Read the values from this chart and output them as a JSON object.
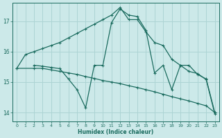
{
  "xlabel": "Humidex (Indice chaleur)",
  "background_color": "#cce9e9",
  "grid_color": "#add4d4",
  "line_color": "#1a6b5e",
  "xlim": [
    -0.5,
    23.5
  ],
  "ylim": [
    13.7,
    17.6
  ],
  "yticks": [
    14,
    15,
    16,
    17
  ],
  "xticks": [
    0,
    1,
    2,
    3,
    4,
    5,
    6,
    7,
    8,
    9,
    10,
    11,
    12,
    13,
    14,
    15,
    16,
    17,
    18,
    19,
    20,
    21,
    22,
    23
  ],
  "line1_x": [
    0,
    1,
    2,
    3,
    4,
    5,
    6,
    7,
    8,
    9,
    10,
    11,
    12,
    13,
    14,
    15,
    16,
    17,
    18,
    19,
    20,
    21,
    22,
    23
  ],
  "line1_y": [
    15.45,
    15.9,
    16.0,
    16.1,
    16.2,
    16.3,
    16.45,
    16.6,
    16.75,
    16.9,
    17.05,
    17.2,
    17.45,
    17.05,
    17.05,
    16.65,
    16.3,
    16.2,
    15.75,
    15.55,
    15.55,
    15.25,
    15.1,
    14.0
  ],
  "line2_x": [
    0,
    2,
    3,
    4,
    5,
    6,
    7,
    8,
    9,
    10,
    11,
    12,
    13,
    14,
    15,
    16,
    17,
    18,
    19,
    20,
    21,
    22,
    23
  ],
  "line2_y": [
    15.45,
    15.45,
    15.45,
    15.4,
    15.35,
    15.3,
    15.25,
    15.18,
    15.12,
    15.05,
    15.0,
    14.95,
    14.88,
    14.82,
    14.75,
    14.68,
    14.6,
    14.52,
    14.45,
    14.38,
    14.3,
    14.22,
    14.0
  ],
  "line3_x": [
    2,
    3,
    4,
    5,
    6,
    7,
    8,
    9,
    10,
    11,
    12,
    13,
    14,
    15,
    16,
    17,
    18,
    19,
    20,
    21,
    22,
    23
  ],
  "line3_y": [
    15.55,
    15.52,
    15.48,
    15.44,
    15.1,
    14.75,
    14.15,
    15.55,
    15.55,
    16.95,
    17.4,
    17.2,
    17.15,
    16.7,
    15.3,
    15.55,
    14.75,
    15.55,
    15.35,
    15.28,
    15.08,
    13.95
  ]
}
